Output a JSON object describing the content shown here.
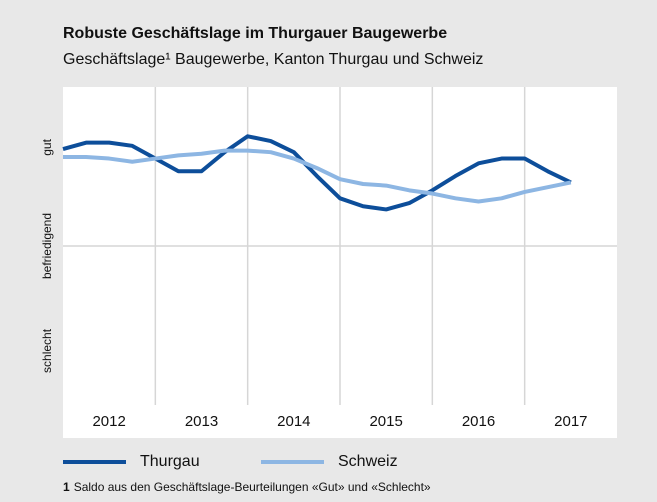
{
  "chart_data": {
    "type": "line",
    "title": "Robuste Geschäftslage im Thurgauer Baugewerbe",
    "subtitle": "Geschäftslage¹ Baugewerbe, Kanton Thurgau und Schweiz",
    "x": [
      2012,
      2012.25,
      2012.5,
      2012.75,
      2013,
      2013.25,
      2013.5,
      2013.75,
      2014,
      2014.25,
      2014.5,
      2014.75,
      2015,
      2015.25,
      2015.5,
      2015.75,
      2016,
      2016.25,
      2016.5,
      2016.75,
      2017,
      2017.25,
      2017.5
    ],
    "series": [
      {
        "name": "Thurgau",
        "color": "#0d4e9a",
        "values": [
          61,
          65,
          65,
          63,
          55,
          47,
          47,
          59,
          69,
          66,
          59,
          44,
          30,
          25,
          23,
          27,
          35,
          44,
          52,
          55,
          55,
          47,
          40
        ]
      },
      {
        "name": "Schweiz",
        "color": "#8db6e3",
        "values": [
          56,
          56,
          55,
          53,
          55,
          57,
          58,
          60,
          60,
          59,
          55,
          49,
          42,
          39,
          38,
          35,
          33,
          30,
          28,
          30,
          34,
          37,
          40
        ]
      }
    ],
    "xlim": [
      2012,
      2018
    ],
    "xticks": [
      {
        "value": 2012.5,
        "label": "2012"
      },
      {
        "value": 2013.5,
        "label": "2013"
      },
      {
        "value": 2014.5,
        "label": "2014"
      },
      {
        "value": 2015.5,
        "label": "2015"
      },
      {
        "value": 2016.5,
        "label": "2016"
      },
      {
        "value": 2017.5,
        "label": "2017"
      }
    ],
    "x_grid": [
      2013,
      2014,
      2015,
      2016,
      2017
    ],
    "ylim": [
      -100,
      100
    ],
    "yticks": [
      {
        "value": 0,
        "label": "befriedigend"
      }
    ],
    "y_labels": [
      {
        "value": 62,
        "label": "gut"
      },
      {
        "value": -66,
        "label": "schlecht"
      }
    ],
    "grid": true,
    "footnote": {
      "marker": "1",
      "text": "Saldo aus den Geschäftslage-Beurteilungen «Gut» und «Schlecht»"
    }
  }
}
